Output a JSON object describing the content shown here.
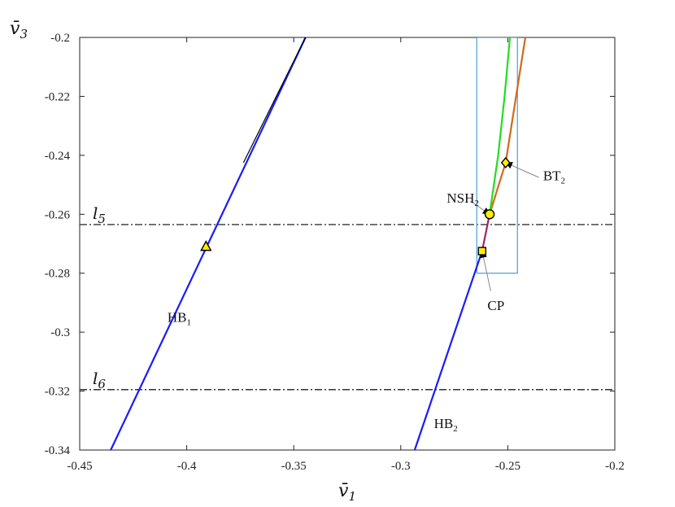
{
  "chart_data": {
    "type": "line",
    "xlabel": "v̄",
    "xlabel_sub": "1",
    "ylabel": "v̄",
    "ylabel_sub": "3",
    "xlim": [
      -0.45,
      -0.2
    ],
    "ylim": [
      -0.34,
      -0.2
    ],
    "xticks": [
      {
        "value": -0.45,
        "label": "-0.45"
      },
      {
        "value": -0.4,
        "label": "-0.4"
      },
      {
        "value": -0.35,
        "label": "-0.35"
      },
      {
        "value": -0.3,
        "label": "-0.3"
      },
      {
        "value": -0.25,
        "label": "-0.25"
      },
      {
        "value": -0.2,
        "label": "-0.2"
      }
    ],
    "yticks": [
      {
        "value": -0.2,
        "label": "-0.2"
      },
      {
        "value": -0.22,
        "label": "-0.22"
      },
      {
        "value": -0.24,
        "label": "-0.24"
      },
      {
        "value": -0.26,
        "label": "-0.26"
      },
      {
        "value": -0.28,
        "label": "-0.28"
      },
      {
        "value": -0.3,
        "label": "-0.3"
      },
      {
        "value": -0.32,
        "label": "-0.32"
      },
      {
        "value": -0.34,
        "label": "-0.34"
      }
    ],
    "grid": false,
    "series": [
      {
        "id": "hb1",
        "color": "#1a1aff",
        "points": [
          [
            -0.4355,
            -0.34
          ],
          [
            -0.3445,
            -0.2
          ]
        ]
      },
      {
        "id": "hb1-overlay",
        "color": "#000000",
        "points": [
          [
            -0.3735,
            -0.2425
          ],
          [
            -0.3445,
            -0.2
          ]
        ]
      },
      {
        "id": "hb2",
        "color": "#1a1aff",
        "points": [
          [
            -0.2935,
            -0.34
          ],
          [
            -0.262,
            -0.2725
          ]
        ]
      },
      {
        "id": "cusp-segment",
        "color": "#a0226a",
        "points": [
          [
            -0.262,
            -0.2725
          ],
          [
            -0.2585,
            -0.26
          ]
        ]
      },
      {
        "id": "bt-branch",
        "color": "#d2691e",
        "points": [
          [
            -0.2585,
            -0.26
          ],
          [
            -0.251,
            -0.2425
          ],
          [
            -0.2418,
            -0.2
          ]
        ]
      },
      {
        "id": "nsh-branch",
        "color": "#22dd22",
        "points": [
          [
            -0.2585,
            -0.26
          ],
          [
            -0.2545,
            -0.24
          ],
          [
            -0.2515,
            -0.22
          ],
          [
            -0.249,
            -0.2
          ]
        ]
      }
    ],
    "hlines": [
      {
        "id": "l5",
        "y": -0.2635,
        "label": "l",
        "label_sub": "5"
      },
      {
        "id": "l6",
        "y": -0.3195,
        "label": "l",
        "label_sub": "6"
      }
    ],
    "zoom_box": {
      "x": [
        -0.2645,
        -0.2455
      ],
      "y": [
        -0.28,
        -0.2
      ]
    },
    "markers": [
      {
        "id": "triangle",
        "shape": "triangle",
        "x": -0.391,
        "y": -0.271,
        "color": "#ffee00"
      },
      {
        "id": "nsh2",
        "shape": "circle",
        "x": -0.2585,
        "y": -0.26,
        "color": "#ffee00"
      },
      {
        "id": "cp",
        "shape": "square",
        "x": -0.262,
        "y": -0.2725,
        "color": "#ffee00"
      },
      {
        "id": "bt2",
        "shape": "diamond",
        "x": -0.251,
        "y": -0.2425,
        "color": "#ffee00"
      }
    ],
    "annotations": [
      {
        "id": "hb1-label",
        "text": "HB",
        "sub": "1",
        "x": -0.409,
        "y": -0.2965
      },
      {
        "id": "hb2-label",
        "text": "HB",
        "sub": "2",
        "x": -0.2845,
        "y": -0.3325
      },
      {
        "id": "nsh2-label",
        "text": "NSH",
        "sub": "2",
        "x": -0.2785,
        "y": -0.256,
        "arrow_to": [
          -0.2585,
          -0.26
        ],
        "arrow_from": [
          -0.2675,
          -0.2555
        ]
      },
      {
        "id": "cp-label",
        "text": "CP",
        "sub": "",
        "x": -0.2595,
        "y": -0.2925,
        "arrow_to": [
          -0.262,
          -0.2725
        ],
        "arrow_from": [
          -0.258,
          -0.286
        ]
      },
      {
        "id": "bt2-label",
        "text": "BT",
        "sub": "2",
        "x": -0.2335,
        "y": -0.2485,
        "arrow_to": [
          -0.251,
          -0.2425
        ],
        "arrow_from": [
          -0.2355,
          -0.2475
        ]
      }
    ]
  }
}
